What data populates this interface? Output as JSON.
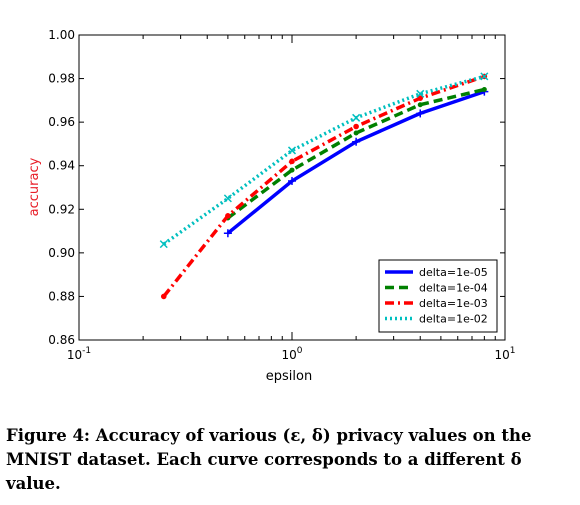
{
  "chart_data": {
    "type": "line",
    "xlabel": "epsilon",
    "ylabel": "accuracy",
    "ylabel_color": "#e8202a",
    "xscale": "log",
    "xlim": [
      0.1,
      10
    ],
    "ylim": [
      0.86,
      1.0
    ],
    "xticks": [
      {
        "value": 0.1,
        "base": "10",
        "exp": "-1"
      },
      {
        "value": 1,
        "base": "10",
        "exp": "0"
      },
      {
        "value": 10,
        "base": "10",
        "exp": "1"
      }
    ],
    "yticks": [
      "0.86",
      "0.88",
      "0.90",
      "0.92",
      "0.94",
      "0.96",
      "0.98",
      "1.00"
    ],
    "legend_position": "lower-right",
    "grid": false,
    "series": [
      {
        "name": "delta=1e-05",
        "color": "#0000ff",
        "style": "solid",
        "x": [
          0.5,
          1,
          2,
          4,
          8
        ],
        "y": [
          0.909,
          0.933,
          0.951,
          0.964,
          0.974
        ]
      },
      {
        "name": "delta=1e-04",
        "color": "#008000",
        "style": "dashed",
        "x": [
          0.5,
          1,
          2,
          4,
          8
        ],
        "y": [
          0.916,
          0.938,
          0.955,
          0.968,
          0.975
        ]
      },
      {
        "name": "delta=1e-03",
        "color": "#ff0000",
        "style": "dashdot",
        "x": [
          0.25,
          0.5,
          1,
          2,
          4,
          8
        ],
        "y": [
          0.88,
          0.917,
          0.942,
          0.958,
          0.971,
          0.981
        ]
      },
      {
        "name": "delta=1e-02",
        "color": "#00bfbf",
        "style": "dotted",
        "x": [
          0.25,
          0.5,
          1,
          2,
          4,
          8
        ],
        "y": [
          0.904,
          0.925,
          0.947,
          0.962,
          0.973,
          0.981
        ]
      }
    ]
  },
  "caption": {
    "label": "Figure 4:",
    "text": "Accuracy of various (ε, δ) privacy values on the MNIST dataset. Each curve corresponds to a different δ value."
  }
}
